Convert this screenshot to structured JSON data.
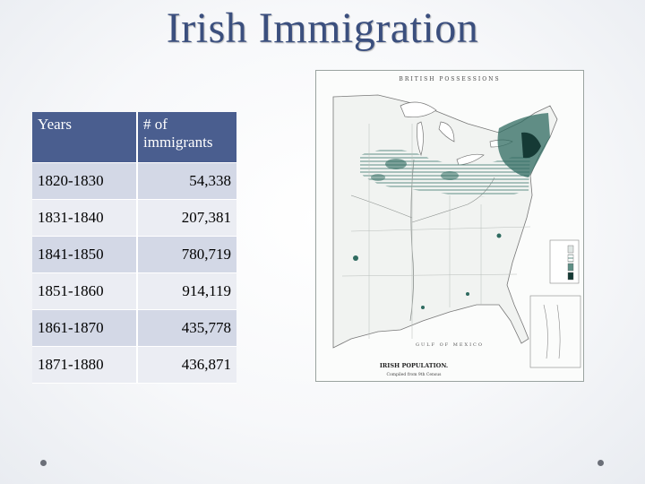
{
  "title": "Irish Immigration",
  "table": {
    "headers": [
      "Years",
      "# of immigrants"
    ],
    "rows": [
      {
        "years": "1820-1830",
        "count": "54,338"
      },
      {
        "years": "1831-1840",
        "count": "207,381"
      },
      {
        "years": "1841-1850",
        "count": "780,719"
      },
      {
        "years": "1851-1860",
        "count": "914,119"
      },
      {
        "years": "1861-1870",
        "count": "435,778"
      },
      {
        "years": "1871-1880",
        "count": "436,871"
      }
    ]
  },
  "map": {
    "top_label": "BRITISH POSSESSIONS",
    "gulf_label": "GULF OF MEXICO",
    "caption_title": "IRISH POPULATION.",
    "caption_sub": "Compiled from 9th Census",
    "accent_color": "#2f6b60"
  }
}
